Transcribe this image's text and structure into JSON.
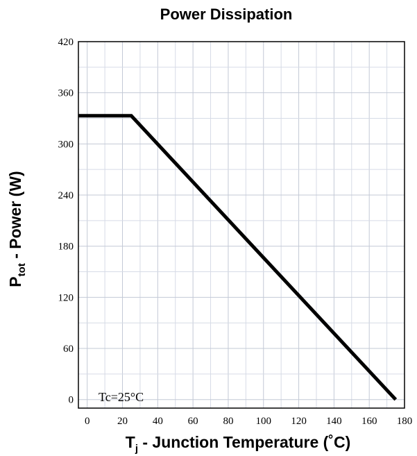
{
  "chart_data": {
    "type": "line",
    "title": "Power Dissipation",
    "ylabel_main": "P",
    "ylabel_sub": "tot",
    "ylabel_rest": " - Power (W)",
    "xlabel_main": "T",
    "xlabel_sub": "j",
    "xlabel_rest": " - Junction Temperature (˚C)",
    "annotation": "Tc=25°C",
    "xlim": [
      -5,
      180
    ],
    "ylim": [
      -10,
      420
    ],
    "x_ticks": [
      0,
      20,
      40,
      60,
      80,
      100,
      120,
      140,
      160,
      180
    ],
    "y_ticks": [
      0,
      60,
      120,
      180,
      240,
      300,
      360,
      420
    ],
    "grid": true,
    "series": [
      {
        "color": "#000000",
        "x": [
          -5,
          25,
          175
        ],
        "y": [
          333,
          333,
          0
        ]
      }
    ]
  }
}
